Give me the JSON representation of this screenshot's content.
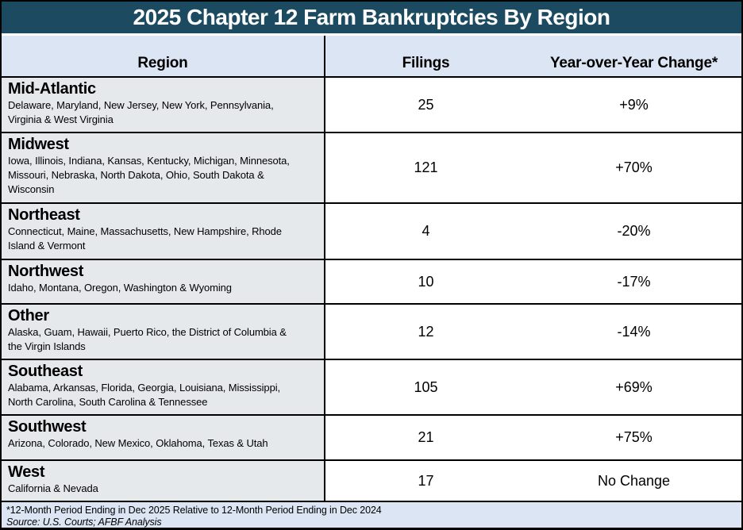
{
  "title": "2025 Chapter 12 Farm Bankruptcies By Region",
  "table": {
    "columns": {
      "region": "Region",
      "filings": "Filings",
      "change": "Year-over-Year Change*"
    },
    "rows": [
      {
        "region": "Mid-Atlantic",
        "states": "Delaware, Maryland, New Jersey, New York, Pennsylvania,\nVirginia & West Virginia",
        "filings": "25",
        "change": "+9%"
      },
      {
        "region": "Midwest",
        "states": "Iowa, Illinois, Indiana, Kansas, Kentucky, Michigan, Minnesota,\nMissouri, Nebraska, North Dakota, Ohio, South Dakota &\nWisconsin",
        "filings": "121",
        "change": "+70%"
      },
      {
        "region": "Northeast",
        "states": "Connecticut, Maine, Massachusetts, New Hampshire, Rhode\nIsland & Vermont",
        "filings": "4",
        "change": "-20%"
      },
      {
        "region": "Northwest",
        "states": "Idaho, Montana, Oregon, Washington & Wyoming",
        "filings": "10",
        "change": "-17%"
      },
      {
        "region": "Other",
        "states": "Alaska, Guam, Hawaii, Puerto Rico, the District of Columbia &\nthe Virgin Islands",
        "filings": "12",
        "change": "-14%"
      },
      {
        "region": "Southeast",
        "states": "Alabama, Arkansas, Florida, Georgia, Louisiana, Mississippi,\nNorth Carolina, South Carolina & Tennessee",
        "filings": "105",
        "change": "+69%"
      },
      {
        "region": "Southwest",
        "states": "Arizona, Colorado, New Mexico, Oklahoma, Texas & Utah",
        "filings": "21",
        "change": "+75%"
      },
      {
        "region": "West",
        "states": "California & Nevada",
        "filings": "17",
        "change": "No Change"
      }
    ]
  },
  "footer": {
    "footnote": "*12-Month Period Ending in Dec 2025 Relative to 12-Month Period Ending in Dec 2024",
    "source": "Source: U.S. Courts; AFBF Analysis"
  },
  "colors": {
    "title_bg": "#1C4A60",
    "header_bg": "#DBE5F3",
    "region_cell_bg": "#E5E9EC",
    "border": "#000000",
    "title_text": "#FFFFFF",
    "body_text": "#000000"
  },
  "chart_data": {
    "type": "table",
    "title": "2025 Chapter 12 Farm Bankruptcies By Region",
    "columns": [
      "Region",
      "Filings",
      "Year-over-Year Change*"
    ],
    "rows": [
      [
        "Mid-Atlantic",
        25,
        "+9%"
      ],
      [
        "Midwest",
        121,
        "+70%"
      ],
      [
        "Northeast",
        4,
        "-20%"
      ],
      [
        "Northwest",
        10,
        "-17%"
      ],
      [
        "Other",
        12,
        "-14%"
      ],
      [
        "Southeast",
        105,
        "+69%"
      ],
      [
        "Southwest",
        21,
        "+75%"
      ],
      [
        "West",
        17,
        "No Change"
      ]
    ],
    "footnote": "*12-Month Period Ending in Dec 2025 Relative to 12-Month Period Ending in Dec 2024",
    "source": "Source: U.S. Courts; AFBF Analysis"
  }
}
